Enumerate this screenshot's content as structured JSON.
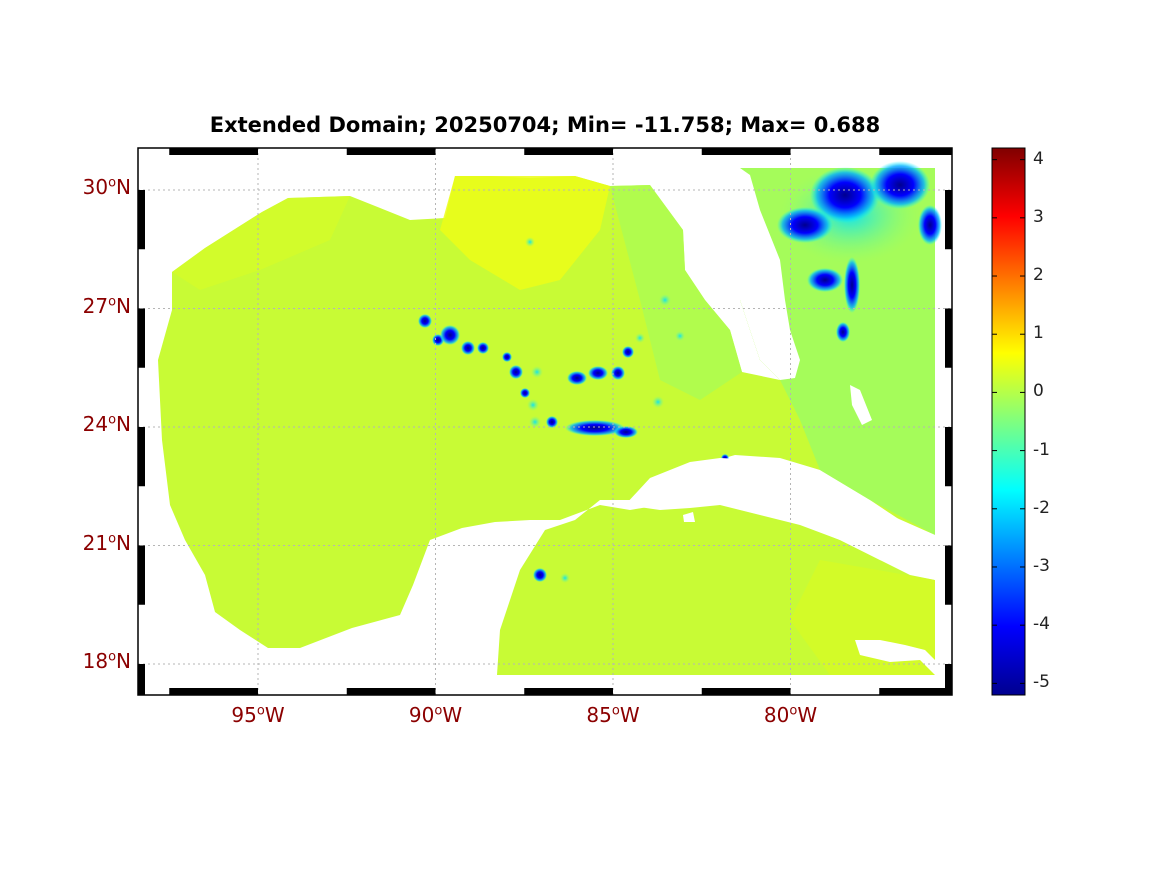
{
  "title": "Extended Domain; 20250704; Min= -11.758; Max= 0.688",
  "map": {
    "lon_range": [
      -98.5,
      -75.5
    ],
    "lat_range": [
      17.0,
      30.9
    ],
    "lon_ticks": [
      {
        "value": -95,
        "deg": "95",
        "dir": "W"
      },
      {
        "value": -90,
        "deg": "90",
        "dir": "W"
      },
      {
        "value": -85,
        "deg": "85",
        "dir": "W"
      },
      {
        "value": -80,
        "deg": "80",
        "dir": "W"
      }
    ],
    "lat_ticks": [
      {
        "value": 30,
        "deg": "30",
        "dir": "N"
      },
      {
        "value": 27,
        "deg": "27",
        "dir": "N"
      },
      {
        "value": 24,
        "deg": "24",
        "dir": "N"
      },
      {
        "value": 21,
        "deg": "21",
        "dir": "N"
      },
      {
        "value": 18,
        "deg": "18",
        "dir": "N"
      }
    ],
    "degree_symbol": "o",
    "grid": true,
    "label_color": "#8b0000",
    "water_color": "#c6ff2e",
    "land_color": "#ffffff"
  },
  "colorbar": {
    "colormap": "jet",
    "range": [
      -5.2,
      4.2
    ],
    "ticks": [
      "4",
      "3",
      "2",
      "1",
      "0",
      "-1",
      "-2",
      "-3",
      "-4",
      "-5"
    ]
  }
}
